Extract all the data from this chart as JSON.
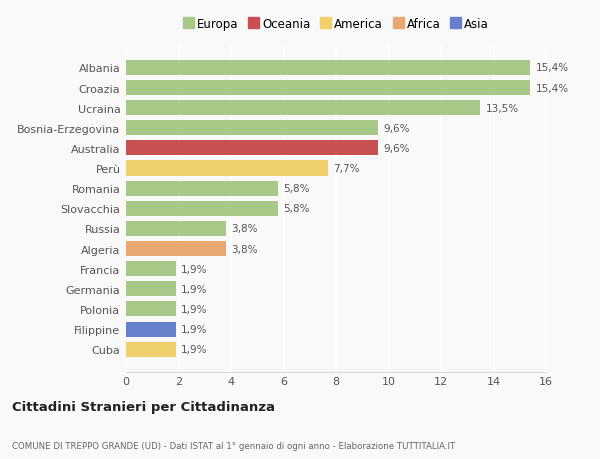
{
  "countries": [
    "Albania",
    "Croazia",
    "Ucraina",
    "Bosnia-Erzegovina",
    "Australia",
    "Perù",
    "Romania",
    "Slovacchia",
    "Russia",
    "Algeria",
    "Francia",
    "Germania",
    "Polonia",
    "Filippine",
    "Cuba"
  ],
  "values": [
    15.4,
    15.4,
    13.5,
    9.6,
    9.6,
    7.7,
    5.8,
    5.8,
    3.8,
    3.8,
    1.9,
    1.9,
    1.9,
    1.9,
    1.9
  ],
  "labels": [
    "15,4%",
    "15,4%",
    "13,5%",
    "9,6%",
    "9,6%",
    "7,7%",
    "5,8%",
    "5,8%",
    "3,8%",
    "3,8%",
    "1,9%",
    "1,9%",
    "1,9%",
    "1,9%",
    "1,9%"
  ],
  "continents": [
    "Europa",
    "Europa",
    "Europa",
    "Europa",
    "Oceania",
    "America",
    "Europa",
    "Europa",
    "Europa",
    "Africa",
    "Europa",
    "Europa",
    "Europa",
    "Asia",
    "America"
  ],
  "continent_colors": {
    "Europa": "#a8c888",
    "Oceania": "#c85050",
    "America": "#f0d06a",
    "Africa": "#e8a870",
    "Asia": "#6680cc"
  },
  "legend_order": [
    "Europa",
    "Oceania",
    "America",
    "Africa",
    "Asia"
  ],
  "title": "Cittadini Stranieri per Cittadinanza",
  "subtitle": "COMUNE DI TREPPO GRANDE (UD) - Dati ISTAT al 1° gennaio di ogni anno - Elaborazione TUTTITALIA.IT",
  "xlim": [
    0,
    16
  ],
  "xticks": [
    0,
    2,
    4,
    6,
    8,
    10,
    12,
    14,
    16
  ],
  "bg_color": "#f9f9f9",
  "grid_color": "#e8e8e8",
  "bar_height": 0.75
}
